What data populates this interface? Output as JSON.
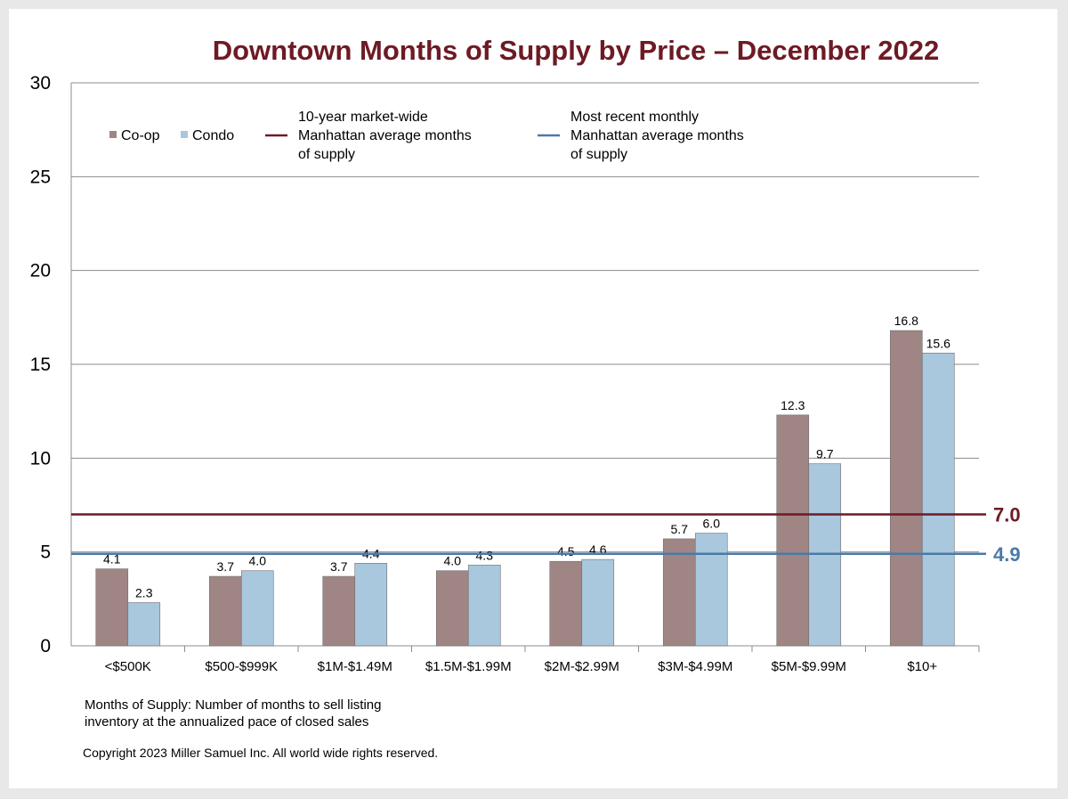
{
  "chart_data": {
    "type": "bar",
    "title": "Downtown Months of Supply by Price – December 2022",
    "categories": [
      "<$500K",
      "$500-$999K",
      "$1M-$1.49M",
      "$1.5M-$1.99M",
      "$2M-$2.99M",
      "$3M-$4.99M",
      "$5M-$9.99M",
      "$10+"
    ],
    "series": [
      {
        "name": "Co-op",
        "color": "#a08585",
        "values": [
          4.1,
          3.7,
          3.7,
          4.0,
          4.5,
          5.7,
          12.3,
          16.8
        ],
        "labels": [
          "4.1",
          "3.7",
          "3.7",
          "4.0",
          "4.5",
          "5.7",
          "12.3",
          "16.8"
        ]
      },
      {
        "name": "Condo",
        "color": "#a9c7dd",
        "values": [
          2.3,
          4.0,
          4.4,
          4.3,
          4.6,
          6.0,
          9.7,
          15.6
        ],
        "labels": [
          "2.3",
          "4.0",
          "4.4",
          "4.3",
          "4.6",
          "6.0",
          "9.7",
          "15.6"
        ]
      }
    ],
    "reference_lines": [
      {
        "name": [
          "10-year market-wide",
          "Manhattan average months",
          "of supply"
        ],
        "value": 7.0,
        "label": "7.0",
        "color": "#6e1a24"
      },
      {
        "name": [
          "Most recent monthly",
          "Manhattan average months",
          "of supply"
        ],
        "value": 4.9,
        "label": "4.9",
        "color": "#4a7aa8"
      }
    ],
    "ylim": [
      0,
      30
    ],
    "yticks": [
      "0",
      "5",
      "10",
      "15",
      "20",
      "25",
      "30"
    ],
    "grid": true,
    "legend_position": "top"
  },
  "footnote": [
    "Months of Supply: Number of months to sell listing",
    "inventory at the annualized pace of closed sales"
  ],
  "copyright": "Copyright 2023 Miller Samuel Inc.  All world wide rights reserved."
}
